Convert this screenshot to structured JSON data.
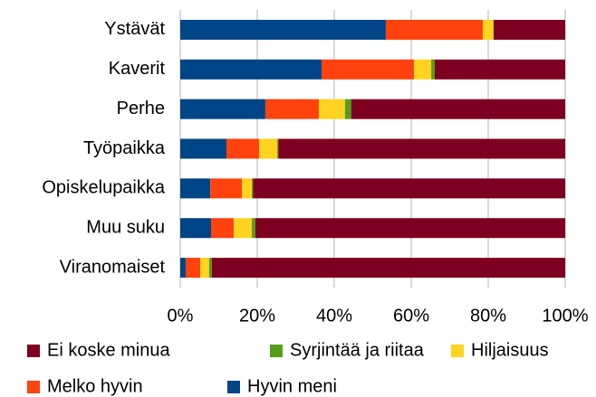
{
  "chart_data": {
    "type": "stacked_bar_horizontal",
    "categories": [
      "Ystävät",
      "Kaverit",
      "Perhe",
      "Työpaikka",
      "Opiskelupaikka",
      "Muu suku",
      "Viranomaiset"
    ],
    "series": [
      {
        "name": "Hyvin meni",
        "color": "#004586",
        "values": [
          53.4,
          36.7,
          22.1,
          12,
          7.8,
          8,
          1.4
        ]
      },
      {
        "name": "Melko hyvin",
        "color": "#ff420e",
        "values": [
          25.2,
          24,
          13.9,
          8.5,
          8.2,
          5.9,
          3.8
        ]
      },
      {
        "name": "Hiljaisuus",
        "color": "#ffd320",
        "values": [
          2.8,
          4.5,
          6.8,
          4.7,
          2.6,
          4.7,
          2.3
        ]
      },
      {
        "name": "Syrjintää ja riitaa",
        "color": "#579d1c",
        "values": [
          0,
          0.9,
          1.6,
          0.3,
          0.3,
          0.9,
          0.7
        ]
      },
      {
        "name": "Ei koske minua",
        "color": "#7e0021",
        "values": [
          18.6,
          33.9,
          55.6,
          74.5,
          81.1,
          80.5,
          91.8
        ]
      }
    ],
    "xlim": [
      0,
      100
    ],
    "xticks": [
      {
        "value": 0,
        "label": "0%"
      },
      {
        "value": 20,
        "label": "20%"
      },
      {
        "value": 40,
        "label": "40%"
      },
      {
        "value": 60,
        "label": "60%"
      },
      {
        "value": 80,
        "label": "80%"
      },
      {
        "value": 100,
        "label": "100%"
      }
    ],
    "grid": true
  }
}
